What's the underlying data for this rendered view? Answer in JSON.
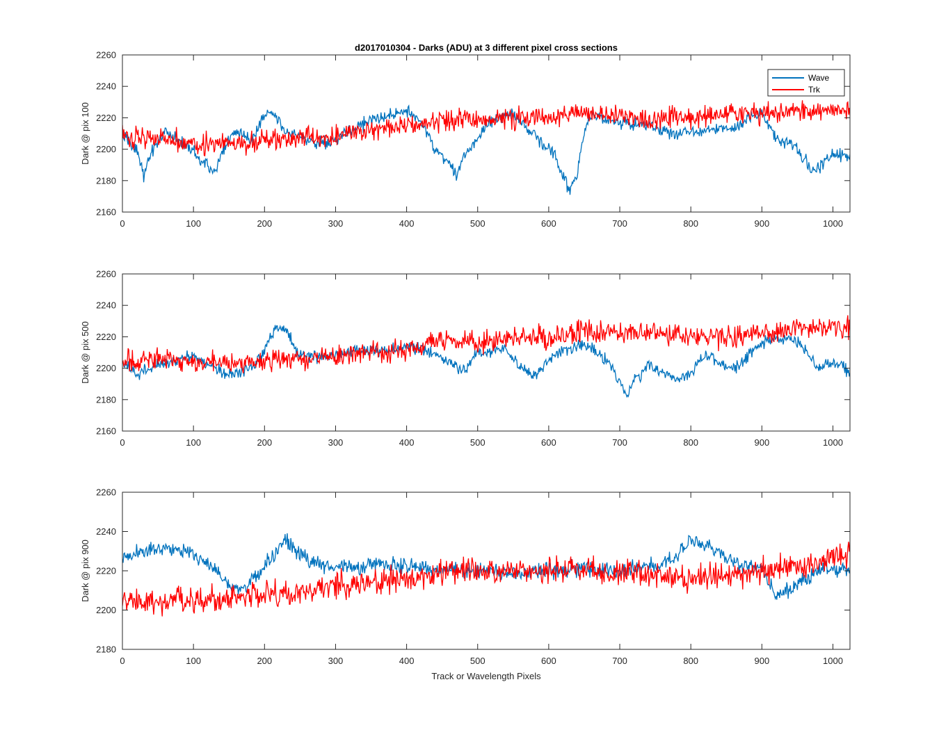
{
  "title": "d2017010304 - Darks (ADU) at 3 different pixel cross sections",
  "xlabel": "Track or Wavelength Pixels",
  "colors": {
    "wave": "#0072BD",
    "trk": "#FF0000",
    "axis": "#262626"
  },
  "legend": {
    "location": "top-right",
    "entries": [
      "Wave",
      "Trk"
    ]
  },
  "chart_data": [
    {
      "type": "line",
      "ylabel": "Dark @ pix 100",
      "xlim": [
        0,
        1024
      ],
      "ylim": [
        2160,
        2260
      ],
      "xticks": [
        0,
        100,
        200,
        300,
        400,
        500,
        600,
        700,
        800,
        900,
        1000
      ],
      "yticks": [
        2160,
        2180,
        2200,
        2220,
        2240,
        2260
      ],
      "series": [
        {
          "name": "Wave",
          "x": [
            0,
            20,
            30,
            40,
            60,
            80,
            100,
            110,
            130,
            140,
            160,
            180,
            200,
            210,
            230,
            260,
            290,
            320,
            360,
            400,
            420,
            440,
            460,
            470,
            480,
            500,
            520,
            540,
            560,
            580,
            600,
            610,
            620,
            630,
            640,
            650,
            660,
            700,
            740,
            780,
            820,
            860,
            900,
            920,
            950,
            970,
            990,
            1000,
            1024
          ],
          "y": [
            2208,
            2200,
            2183,
            2198,
            2212,
            2205,
            2200,
            2193,
            2185,
            2198,
            2212,
            2205,
            2222,
            2225,
            2212,
            2206,
            2204,
            2212,
            2220,
            2224,
            2218,
            2200,
            2192,
            2183,
            2196,
            2206,
            2218,
            2222,
            2219,
            2208,
            2200,
            2196,
            2182,
            2174,
            2186,
            2210,
            2222,
            2217,
            2215,
            2210,
            2212,
            2214,
            2224,
            2208,
            2200,
            2187,
            2192,
            2198,
            2195
          ]
        },
        {
          "name": "Trk",
          "x": [
            0,
            50,
            100,
            150,
            200,
            250,
            300,
            350,
            400,
            450,
            500,
            550,
            600,
            650,
            700,
            750,
            800,
            850,
            900,
            950,
            1000,
            1024
          ],
          "y": [
            2208,
            2208,
            2204,
            2203,
            2205,
            2207,
            2208,
            2212,
            2216,
            2218,
            2219,
            2220,
            2220,
            2224,
            2222,
            2219,
            2220,
            2222,
            2222,
            2224,
            2226,
            2225
          ]
        }
      ]
    },
    {
      "type": "line",
      "ylabel": "Dark @ pix 500",
      "xlim": [
        0,
        1024
      ],
      "ylim": [
        2160,
        2260
      ],
      "xticks": [
        0,
        100,
        200,
        300,
        400,
        500,
        600,
        700,
        800,
        900,
        1000
      ],
      "yticks": [
        2160,
        2180,
        2200,
        2220,
        2240,
        2260
      ],
      "series": [
        {
          "name": "Wave",
          "x": [
            0,
            20,
            60,
            100,
            150,
            180,
            200,
            215,
            230,
            250,
            300,
            340,
            380,
            400,
            420,
            460,
            480,
            500,
            540,
            560,
            580,
            600,
            620,
            660,
            680,
            700,
            710,
            720,
            740,
            760,
            780,
            800,
            820,
            860,
            900,
            940,
            960,
            980,
            1000,
            1024
          ],
          "y": [
            2203,
            2196,
            2204,
            2207,
            2196,
            2199,
            2212,
            2226,
            2224,
            2208,
            2208,
            2212,
            2212,
            2214,
            2212,
            2204,
            2198,
            2210,
            2212,
            2200,
            2194,
            2206,
            2212,
            2214,
            2206,
            2192,
            2182,
            2192,
            2202,
            2198,
            2192,
            2198,
            2208,
            2200,
            2216,
            2220,
            2212,
            2200,
            2204,
            2198
          ]
        },
        {
          "name": "Trk",
          "x": [
            0,
            50,
            100,
            150,
            200,
            250,
            300,
            350,
            400,
            450,
            500,
            550,
            600,
            650,
            700,
            750,
            800,
            850,
            900,
            950,
            1000,
            1024
          ],
          "y": [
            2204,
            2206,
            2204,
            2203,
            2204,
            2206,
            2208,
            2210,
            2212,
            2218,
            2216,
            2220,
            2220,
            2224,
            2222,
            2222,
            2220,
            2220,
            2222,
            2225,
            2226,
            2226
          ]
        }
      ]
    },
    {
      "type": "line",
      "ylabel": "Dark @ pix 900",
      "xlim": [
        0,
        1024
      ],
      "ylim": [
        2180,
        2260
      ],
      "xticks": [
        0,
        100,
        200,
        300,
        400,
        500,
        600,
        700,
        800,
        900,
        1000
      ],
      "yticks": [
        2180,
        2200,
        2220,
        2240,
        2260
      ],
      "series": [
        {
          "name": "Wave",
          "x": [
            0,
            30,
            60,
            90,
            120,
            150,
            170,
            200,
            230,
            250,
            280,
            320,
            360,
            400,
            440,
            480,
            520,
            560,
            600,
            650,
            700,
            740,
            780,
            800,
            830,
            860,
            900,
            920,
            940,
            960,
            990,
            1024
          ],
          "y": [
            2226,
            2230,
            2232,
            2230,
            2224,
            2213,
            2210,
            2222,
            2236,
            2228,
            2222,
            2222,
            2224,
            2222,
            2221,
            2220,
            2220,
            2219,
            2220,
            2221,
            2220,
            2222,
            2226,
            2236,
            2232,
            2224,
            2222,
            2208,
            2210,
            2216,
            2222,
            2220
          ]
        },
        {
          "name": "Trk",
          "x": [
            0,
            50,
            100,
            150,
            200,
            250,
            300,
            350,
            400,
            450,
            500,
            550,
            600,
            650,
            700,
            750,
            800,
            850,
            900,
            950,
            1000,
            1024
          ],
          "y": [
            2204,
            2204,
            2205,
            2206,
            2208,
            2209,
            2212,
            2214,
            2216,
            2219,
            2220,
            2220,
            2221,
            2220,
            2218,
            2218,
            2216,
            2218,
            2219,
            2222,
            2226,
            2228
          ]
        }
      ]
    }
  ]
}
